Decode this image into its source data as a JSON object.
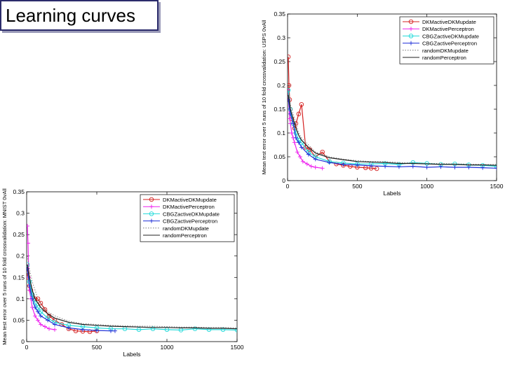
{
  "slide": {
    "title": "Learning curves"
  },
  "chart_data": [
    {
      "id": "usps",
      "type": "line",
      "ylabel": "Mean test error over 5 runs of 10 fold crossvalidation: USPS 0vAll",
      "xlabel": "Labels",
      "xlim": [
        0,
        1500
      ],
      "ylim": [
        0,
        0.35
      ],
      "xticks": [
        0,
        500,
        1000,
        1500
      ],
      "yticks": [
        0,
        0.05,
        0.1,
        0.15,
        0.2,
        0.25,
        0.3,
        0.35
      ],
      "xtick_labels": [
        "0",
        "500",
        "1000",
        "1500"
      ],
      "ytick_labels": [
        "0",
        "0.05",
        "0.1",
        "0.15",
        "0.2",
        "0.25",
        "0.3",
        "0.35"
      ],
      "legend_position": "top-right",
      "colors": {
        "red": "#d42020",
        "magenta": "#ee22ee",
        "cyan": "#20dada",
        "blue": "#1f2fd8",
        "dotted": "#777777",
        "black": "#222222"
      },
      "series": [
        {
          "name": "DKMactiveDKMupdate",
          "color": "red",
          "marker": "o",
          "style": "solid",
          "x": [
            5,
            10,
            15,
            20,
            30,
            40,
            50,
            60,
            80,
            100,
            130,
            160,
            200,
            250,
            300,
            350,
            400,
            450,
            500,
            560,
            600,
            640
          ],
          "y": [
            0.26,
            0.2,
            0.17,
            0.15,
            0.13,
            0.12,
            0.11,
            0.12,
            0.14,
            0.16,
            0.07,
            0.065,
            0.05,
            0.06,
            0.04,
            0.035,
            0.032,
            0.03,
            0.028,
            0.027,
            0.026,
            0.025
          ]
        },
        {
          "name": "DKMactivePerceptron",
          "color": "magenta",
          "marker": "+",
          "style": "solid",
          "x": [
            5,
            10,
            15,
            20,
            30,
            40,
            50,
            70,
            90,
            110,
            140,
            170,
            200,
            250
          ],
          "y": [
            0.19,
            0.15,
            0.13,
            0.12,
            0.1,
            0.09,
            0.08,
            0.06,
            0.05,
            0.04,
            0.035,
            0.03,
            0.028,
            0.026
          ]
        },
        {
          "name": "CBGZactiveDKMupdate",
          "color": "cyan",
          "marker": "o",
          "style": "solid",
          "x": [
            5,
            20,
            40,
            60,
            80,
            100,
            150,
            200,
            300,
            400,
            500,
            600,
            700,
            800,
            900,
            1000,
            1100,
            1200,
            1300,
            1400,
            1500
          ],
          "y": [
            0.19,
            0.15,
            0.12,
            0.1,
            0.085,
            0.08,
            0.06,
            0.05,
            0.04,
            0.037,
            0.035,
            0.035,
            0.036,
            0.034,
            0.038,
            0.036,
            0.034,
            0.035,
            0.033,
            0.032,
            0.03
          ]
        },
        {
          "name": "CBGZactivePerceptron",
          "color": "blue",
          "marker": "+",
          "style": "solid",
          "x": [
            5,
            20,
            40,
            60,
            80,
            100,
            150,
            200,
            300,
            400,
            500,
            600,
            700,
            800,
            900,
            1000,
            1100,
            1200,
            1300,
            1400,
            1500
          ],
          "y": [
            0.17,
            0.14,
            0.12,
            0.09,
            0.08,
            0.07,
            0.055,
            0.045,
            0.038,
            0.034,
            0.033,
            0.031,
            0.03,
            0.029,
            0.03,
            0.028,
            0.029,
            0.028,
            0.028,
            0.027,
            0.026
          ]
        },
        {
          "name": "randomDKMupdate",
          "color": "dotted",
          "marker": "",
          "style": "dotted",
          "x": [
            5,
            20,
            40,
            60,
            80,
            100,
            150,
            200,
            300,
            400,
            500,
            600,
            700,
            800,
            900,
            1000,
            1100,
            1200,
            1300,
            1400,
            1500
          ],
          "y": [
            0.2,
            0.16,
            0.14,
            0.12,
            0.1,
            0.09,
            0.075,
            0.06,
            0.05,
            0.045,
            0.042,
            0.04,
            0.04,
            0.038,
            0.037,
            0.036,
            0.036,
            0.035,
            0.035,
            0.034,
            0.034
          ]
        },
        {
          "name": "randomPerceptron",
          "color": "black",
          "marker": "",
          "style": "solid",
          "x": [
            5,
            20,
            40,
            60,
            80,
            100,
            150,
            200,
            300,
            400,
            500,
            600,
            700,
            800,
            900,
            1000,
            1100,
            1200,
            1300,
            1400,
            1500
          ],
          "y": [
            0.18,
            0.15,
            0.13,
            0.11,
            0.095,
            0.085,
            0.07,
            0.058,
            0.048,
            0.044,
            0.04,
            0.039,
            0.038,
            0.036,
            0.036,
            0.035,
            0.034,
            0.034,
            0.033,
            0.033,
            0.032
          ]
        }
      ]
    },
    {
      "id": "mnist",
      "type": "line",
      "ylabel": "Mean test error over 5 runs of 10 fold crossvalidation: MNIST 0vAll",
      "xlabel": "Labels",
      "xlim": [
        0,
        1500
      ],
      "ylim": [
        0,
        0.35
      ],
      "xticks": [
        0,
        500,
        1000,
        1500
      ],
      "yticks": [
        0,
        0.05,
        0.1,
        0.15,
        0.2,
        0.25,
        0.3,
        0.35
      ],
      "xtick_labels": [
        "0",
        "500",
        "1000",
        "1500"
      ],
      "ytick_labels": [
        "0",
        "0.05",
        "0.1",
        "0.15",
        "0.2",
        "0.25",
        "0.3",
        "0.35"
      ],
      "legend_position": "top-right",
      "colors": {
        "red": "#d42020",
        "magenta": "#ee22ee",
        "cyan": "#20dada",
        "blue": "#1f2fd8",
        "dotted": "#777777",
        "black": "#222222"
      },
      "series": [
        {
          "name": "DKMactiveDKMupdate",
          "color": "red",
          "marker": "o",
          "style": "solid",
          "x": [
            5,
            10,
            20,
            30,
            40,
            60,
            80,
            100,
            130,
            160,
            200,
            250,
            300,
            350,
            400,
            450,
            500
          ],
          "y": [
            0.16,
            0.15,
            0.13,
            0.12,
            0.11,
            0.1,
            0.1,
            0.09,
            0.075,
            0.06,
            0.05,
            0.04,
            0.03,
            0.025,
            0.024,
            0.023,
            0.025
          ]
        },
        {
          "name": "DKMactivePerceptron",
          "color": "magenta",
          "marker": "+",
          "style": "solid",
          "x": [
            5,
            10,
            15,
            20,
            30,
            40,
            60,
            80,
            100,
            130,
            160,
            200
          ],
          "y": [
            0.27,
            0.23,
            0.15,
            0.12,
            0.1,
            0.08,
            0.06,
            0.05,
            0.04,
            0.035,
            0.03,
            0.028
          ]
        },
        {
          "name": "CBGZactiveDKMupdate",
          "color": "cyan",
          "marker": "o",
          "style": "solid",
          "x": [
            5,
            20,
            40,
            60,
            80,
            100,
            150,
            200,
            300,
            400,
            500,
            600,
            700,
            800,
            900,
            1000,
            1100,
            1200,
            1300,
            1400,
            1500
          ],
          "y": [
            0.18,
            0.14,
            0.11,
            0.09,
            0.08,
            0.07,
            0.055,
            0.045,
            0.038,
            0.035,
            0.032,
            0.03,
            0.03,
            0.028,
            0.03,
            0.028,
            0.027,
            0.03,
            0.028,
            0.028,
            0.027
          ]
        },
        {
          "name": "CBGZactivePerceptron",
          "color": "blue",
          "marker": "+",
          "style": "solid",
          "x": [
            5,
            20,
            40,
            60,
            80,
            100,
            150,
            200,
            300,
            400,
            500,
            600,
            630
          ],
          "y": [
            0.17,
            0.13,
            0.1,
            0.08,
            0.07,
            0.06,
            0.05,
            0.04,
            0.032,
            0.028,
            0.026,
            0.025,
            0.025
          ]
        },
        {
          "name": "randomDKMupdate",
          "color": "dotted",
          "marker": "",
          "style": "dotted",
          "x": [
            5,
            20,
            40,
            60,
            80,
            100,
            150,
            200,
            300,
            400,
            500,
            600,
            700,
            800,
            900,
            1000,
            1100,
            1200,
            1300,
            1400,
            1500
          ],
          "y": [
            0.2,
            0.17,
            0.14,
            0.12,
            0.1,
            0.09,
            0.07,
            0.06,
            0.048,
            0.042,
            0.04,
            0.038,
            0.037,
            0.036,
            0.036,
            0.035,
            0.034,
            0.034,
            0.033,
            0.033,
            0.032
          ]
        },
        {
          "name": "randomPerceptron",
          "color": "black",
          "marker": "",
          "style": "solid",
          "x": [
            5,
            20,
            40,
            60,
            80,
            100,
            150,
            200,
            300,
            400,
            500,
            600,
            700,
            800,
            900,
            1000,
            1100,
            1200,
            1300,
            1400,
            1500
          ],
          "y": [
            0.18,
            0.15,
            0.12,
            0.1,
            0.09,
            0.08,
            0.065,
            0.055,
            0.045,
            0.04,
            0.038,
            0.036,
            0.035,
            0.034,
            0.033,
            0.033,
            0.032,
            0.032,
            0.031,
            0.031,
            0.03
          ]
        }
      ]
    }
  ]
}
